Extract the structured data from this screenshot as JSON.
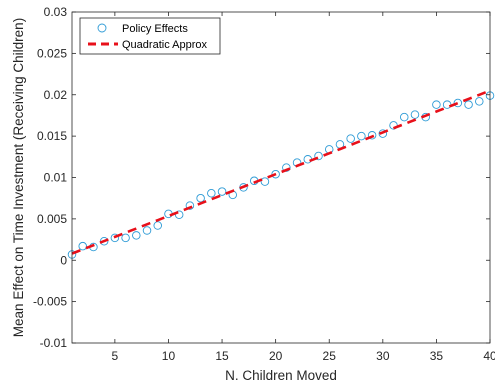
{
  "chart_data": {
    "type": "scatter",
    "title": "",
    "xlabel": "N. Children Moved",
    "ylabel": "Mean Effect on Time Investment (Receiving Children)",
    "xlim": [
      1,
      40
    ],
    "ylim": [
      -0.01,
      0.03
    ],
    "xticks": [
      5,
      10,
      15,
      20,
      25,
      30,
      35,
      40
    ],
    "xtick_labels": [
      "5",
      "10",
      "15",
      "20",
      "25",
      "30",
      "35",
      "40"
    ],
    "yticks": [
      -0.01,
      -0.005,
      0,
      0.005,
      0.01,
      0.015,
      0.02,
      0.025,
      0.03
    ],
    "ytick_labels": [
      "-0.01",
      "-0.005",
      "0",
      "0.005",
      "0.01",
      "0.015",
      "0.02",
      "0.025",
      "0.03"
    ],
    "grid": false,
    "legend_position": "top-left",
    "series": [
      {
        "name": "Policy Effects",
        "kind": "markers",
        "marker": "circle",
        "color": "#2E9BD6",
        "points": [
          [
            1,
            0.0007
          ],
          [
            2,
            0.0017
          ],
          [
            3,
            0.0016
          ],
          [
            4,
            0.0023
          ],
          [
            5,
            0.0027
          ],
          [
            6,
            0.0027
          ],
          [
            7,
            0.003
          ],
          [
            8,
            0.0036
          ],
          [
            9,
            0.0042
          ],
          [
            10,
            0.0056
          ],
          [
            11,
            0.0055
          ],
          [
            12,
            0.0066
          ],
          [
            13,
            0.0075
          ],
          [
            14,
            0.0081
          ],
          [
            15,
            0.0083
          ],
          [
            16,
            0.0079
          ],
          [
            17,
            0.0088
          ],
          [
            18,
            0.0096
          ],
          [
            19,
            0.0095
          ],
          [
            20,
            0.0104
          ],
          [
            21,
            0.0112
          ],
          [
            22,
            0.0118
          ],
          [
            23,
            0.0122
          ],
          [
            24,
            0.0126
          ],
          [
            25,
            0.0134
          ],
          [
            26,
            0.014
          ],
          [
            27,
            0.0147
          ],
          [
            28,
            0.015
          ],
          [
            29,
            0.0151
          ],
          [
            30,
            0.0153
          ],
          [
            31,
            0.0163
          ],
          [
            32,
            0.0173
          ],
          [
            33,
            0.0176
          ],
          [
            34,
            0.0173
          ],
          [
            35,
            0.0188
          ],
          [
            36,
            0.0188
          ],
          [
            37,
            0.019
          ],
          [
            38,
            0.0188
          ],
          [
            39,
            0.0192
          ],
          [
            40,
            0.0199
          ]
        ]
      },
      {
        "name": "Quadratic Approx",
        "kind": "line",
        "dash": "dashed",
        "color": "#E8101A",
        "fit": {
          "intercept": 0.0003,
          "linear": 0.000505,
          "quadratic": 0
        }
      }
    ]
  }
}
